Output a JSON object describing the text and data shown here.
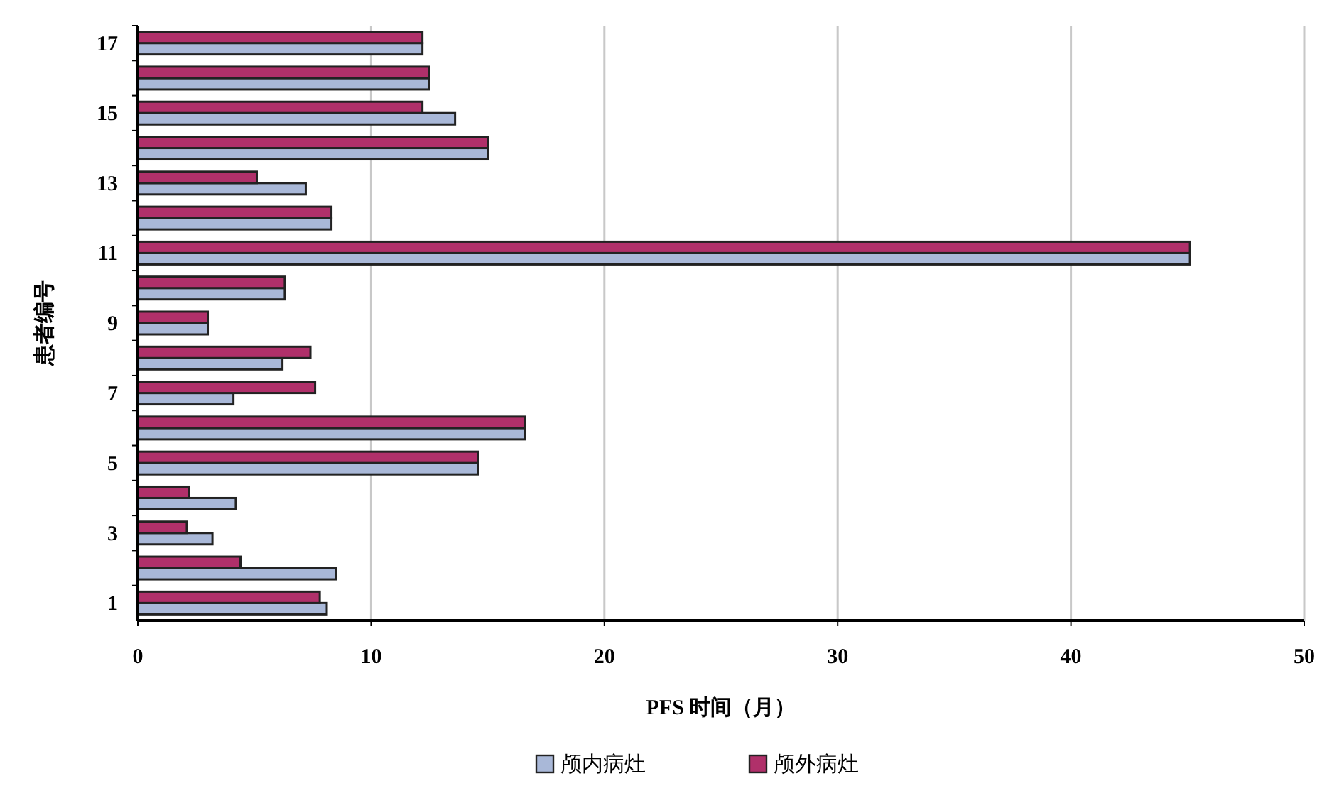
{
  "chart_data": {
    "type": "bar",
    "orientation": "horizontal",
    "xlabel": "PFS 时间（月）",
    "ylabel": "患者编号",
    "categories": [
      "17",
      null,
      "15",
      null,
      "13",
      null,
      "11",
      null,
      "9",
      null,
      "7",
      null,
      "5",
      null,
      "3",
      null,
      "1"
    ],
    "series": [
      {
        "name": "颅内病灶",
        "color": "#a9b8d8",
        "values": [
          12.2,
          12.5,
          13.6,
          15.0,
          7.2,
          8.3,
          45.1,
          6.3,
          3.0,
          6.2,
          4.1,
          16.6,
          14.6,
          4.2,
          3.2,
          8.5,
          8.1
        ]
      },
      {
        "name": "颅外病灶",
        "color": "#b0306a",
        "values": [
          12.2,
          12.5,
          12.2,
          15.0,
          5.1,
          8.3,
          45.1,
          6.3,
          3.0,
          7.4,
          7.6,
          16.6,
          14.6,
          2.2,
          2.1,
          4.4,
          7.8
        ]
      }
    ],
    "xlim": [
      0,
      50
    ],
    "xticks": [
      0,
      10,
      20,
      30,
      40,
      50
    ],
    "grid": "x",
    "legend": "bottom"
  }
}
